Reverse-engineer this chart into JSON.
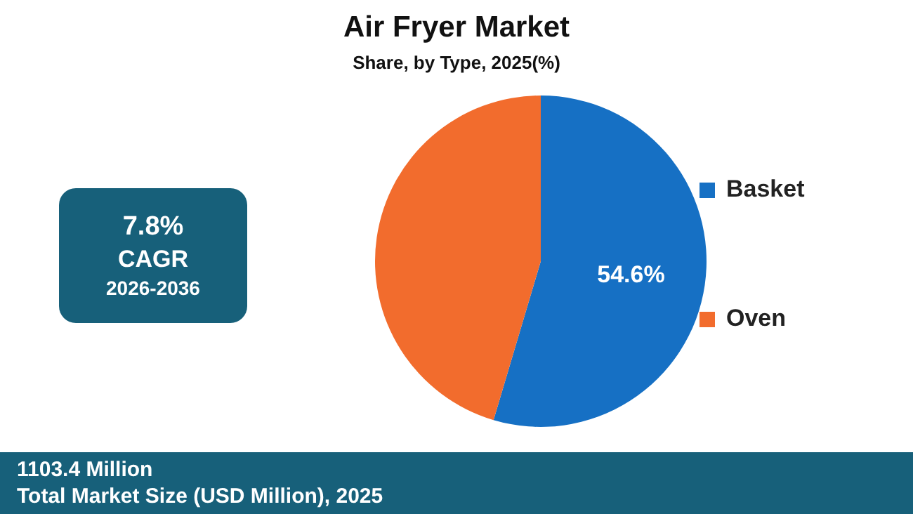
{
  "chart_data": {
    "type": "pie",
    "title": "Air Fryer Market",
    "subtitle": "Share, by Type, 2025(%)",
    "categories": [
      "Basket",
      "Oven"
    ],
    "values": [
      54.6,
      45.4
    ],
    "colors": [
      "#1670c4",
      "#f26c2d"
    ],
    "value_labels": [
      "54.6%",
      null
    ],
    "legend": "right",
    "annotations": [
      "7.8%",
      "CAGR",
      "2026-2036",
      "1103.4 Million",
      "Total Market Size (USD Million), 2025"
    ]
  }
}
